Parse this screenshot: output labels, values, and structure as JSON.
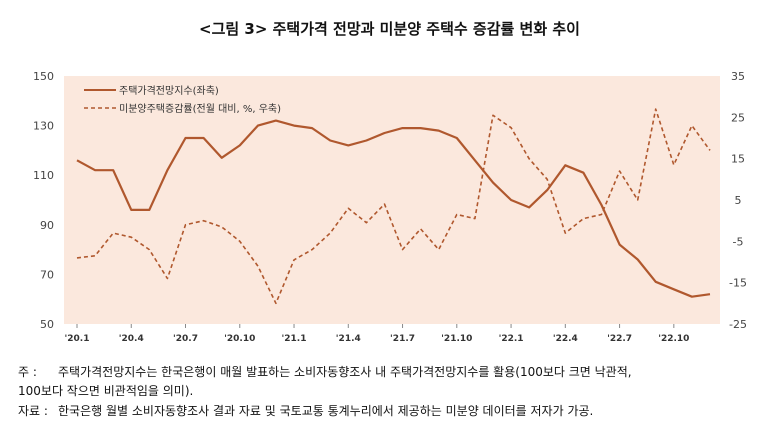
{
  "title": "<그림 3> 주택가격 전망과 미분양 주택수 증감률 변화 추이",
  "notes": {
    "note_label": "주 :",
    "note_line1": "주택가격전망지수는 한국은행이 매월 발표하는 소비자동향조사 내 주택가격전망지수를 활용(100보다 크면 낙관적,",
    "note_line2": "100보다 작으면 비관적임을 의미).",
    "source_label": "자료 :",
    "source_text": "한국은행 월별 소비자동향조사 결과 자료 및 국토교통 통계누리에서 제공하는 미분양 데이터를 저자가 가공."
  },
  "colors": {
    "plot_bg": "#fbe8dd",
    "series": "#b0582e"
  },
  "chart_data": {
    "type": "line",
    "x_tick_labels": [
      "'20.1",
      "'20.4",
      "'20.7",
      "'20.10",
      "'21.1",
      "'21.4",
      "'21.7",
      "'21.10",
      "'22.1",
      "'22.4",
      "'22.7",
      "'22.10"
    ],
    "x_tick_every": 3,
    "y_left": {
      "ylim": [
        50,
        150
      ],
      "ticks": [
        50,
        70,
        90,
        110,
        130,
        150
      ]
    },
    "y_right": {
      "ylim": [
        -25,
        35
      ],
      "ticks": [
        -25,
        -15,
        -5,
        5,
        15,
        25,
        35
      ]
    },
    "series": [
      {
        "name": "주택가격전망지수(좌축)",
        "axis": "left",
        "style": "solid",
        "values": [
          116,
          112,
          112,
          96,
          96,
          112,
          125,
          125,
          117,
          122,
          130,
          132,
          130,
          129,
          124,
          122,
          124,
          127,
          129,
          129,
          128,
          125,
          116,
          107,
          100,
          97,
          104,
          114,
          111,
          98,
          82,
          76,
          67,
          64,
          61,
          62
        ]
      },
      {
        "name": "미분양주택증감률(전월 대비, %, 우축)",
        "axis": "right",
        "style": "dashed",
        "values": [
          -9,
          -8.5,
          -3,
          -4,
          -7,
          -14,
          -1,
          0,
          -1.5,
          -5,
          -11,
          -20,
          -9.5,
          -7,
          -3,
          3,
          -0.5,
          4,
          -7,
          -2,
          -7,
          1.5,
          0.5,
          25.5,
          22.5,
          15,
          10,
          -3,
          0.5,
          1.5,
          12,
          5,
          27,
          13.5,
          23,
          17
        ]
      }
    ]
  }
}
